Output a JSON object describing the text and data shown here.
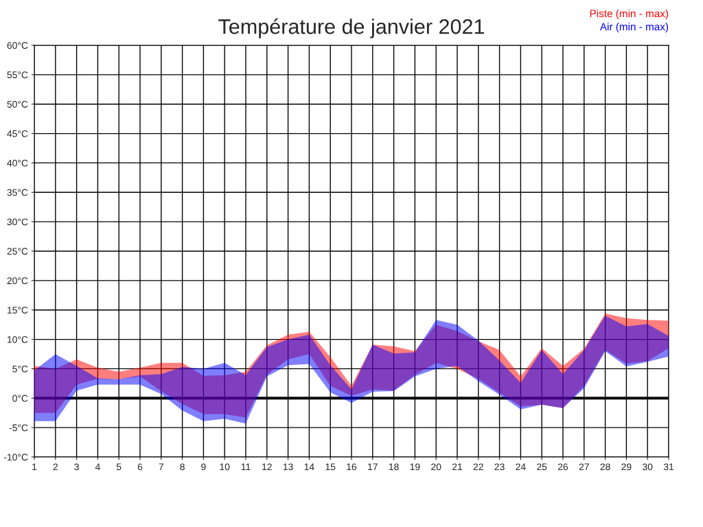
{
  "chart_data": {
    "type": "line",
    "title": "Température de janvier 2021",
    "x": [
      1,
      2,
      3,
      4,
      5,
      6,
      7,
      8,
      9,
      10,
      11,
      12,
      13,
      14,
      15,
      16,
      17,
      18,
      19,
      20,
      21,
      22,
      23,
      24,
      25,
      26,
      27,
      28,
      29,
      30,
      31
    ],
    "series": [
      {
        "name": "Piste (min - max)",
        "color": "#ff0000",
        "values": [
          null,
          null,
          null,
          null,
          null,
          null,
          null,
          null,
          null,
          null,
          null,
          null,
          null,
          null,
          null,
          null,
          null,
          null,
          null,
          null,
          null,
          null,
          null,
          null,
          null,
          null,
          null,
          null,
          null,
          null,
          null
        ],
        "upper": [
          5.5,
          5.0,
          6.6,
          5.2,
          4.5,
          5.2,
          6.0,
          6.0,
          3.8,
          3.9,
          4.5,
          9.0,
          10.8,
          11.3,
          7.0,
          2.1,
          9.1,
          8.8,
          8.0,
          12.5,
          11.4,
          9.7,
          8.2,
          3.7,
          8.5,
          5.5,
          8.4,
          14.4,
          13.6,
          13.3,
          13.2
        ],
        "lower": [
          -2.5,
          -2.5,
          2.3,
          3.3,
          3.2,
          3.7,
          1.2,
          -1.0,
          -2.7,
          -2.7,
          -3.3,
          4.0,
          6.6,
          7.5,
          2.1,
          0.4,
          1.5,
          1.3,
          4.0,
          6.0,
          5.0,
          3.3,
          0.9,
          -1.4,
          -1.1,
          -1.7,
          2.1,
          8.2,
          5.9,
          6.3,
          8.5
        ]
      },
      {
        "name": "Air (min - max)",
        "color": "#0000ff",
        "values": [
          null,
          null,
          null,
          null,
          null,
          null,
          null,
          null,
          null,
          null,
          null,
          null,
          null,
          null,
          null,
          null,
          null,
          null,
          null,
          null,
          null,
          null,
          null,
          null,
          null,
          null,
          null,
          null,
          null,
          null,
          null
        ],
        "upper": [
          4.7,
          7.5,
          5.5,
          3.4,
          3.2,
          3.9,
          4.1,
          5.3,
          5.0,
          6.0,
          3.9,
          8.7,
          10.0,
          10.8,
          5.6,
          1.5,
          9.1,
          7.6,
          7.8,
          13.3,
          12.5,
          9.8,
          6.4,
          2.6,
          8.2,
          4.1,
          8.2,
          14.0,
          12.2,
          12.6,
          10.6
        ],
        "lower": [
          -3.9,
          -3.9,
          1.3,
          2.3,
          2.3,
          2.3,
          0.7,
          -2.1,
          -3.9,
          -3.5,
          -4.3,
          3.7,
          5.6,
          5.8,
          1.0,
          -0.8,
          1.1,
          1.2,
          3.7,
          5.0,
          5.5,
          2.9,
          0.6,
          -1.9,
          -1.1,
          -1.7,
          1.7,
          8.0,
          5.4,
          6.2,
          7.1
        ]
      }
    ],
    "xlim": [
      1,
      31
    ],
    "xticks": [
      1,
      2,
      3,
      4,
      5,
      6,
      7,
      8,
      9,
      10,
      11,
      12,
      13,
      14,
      15,
      16,
      17,
      18,
      19,
      20,
      21,
      22,
      23,
      24,
      25,
      26,
      27,
      28,
      29,
      30,
      31
    ],
    "ylim": [
      -10,
      60
    ],
    "yticks": [
      {
        "value": -10,
        "label": "-10°C"
      },
      {
        "value": -5,
        "label": "-5°C"
      },
      {
        "value": 0,
        "label": "0°C"
      },
      {
        "value": 5,
        "label": "5°C"
      },
      {
        "value": 10,
        "label": "10°C"
      },
      {
        "value": 15,
        "label": "15°C"
      },
      {
        "value": 20,
        "label": "20°C"
      },
      {
        "value": 25,
        "label": "25°C"
      },
      {
        "value": 30,
        "label": "30°C"
      },
      {
        "value": 35,
        "label": "35°C"
      },
      {
        "value": 40,
        "label": "40°C"
      },
      {
        "value": 45,
        "label": "45°C"
      },
      {
        "value": 50,
        "label": "50°C"
      },
      {
        "value": 55,
        "label": "55°C"
      },
      {
        "value": 60,
        "label": "60°C"
      }
    ],
    "ref_lines": [
      {
        "axis": "y",
        "value": 0,
        "color": "#000000"
      }
    ],
    "grid": true
  }
}
